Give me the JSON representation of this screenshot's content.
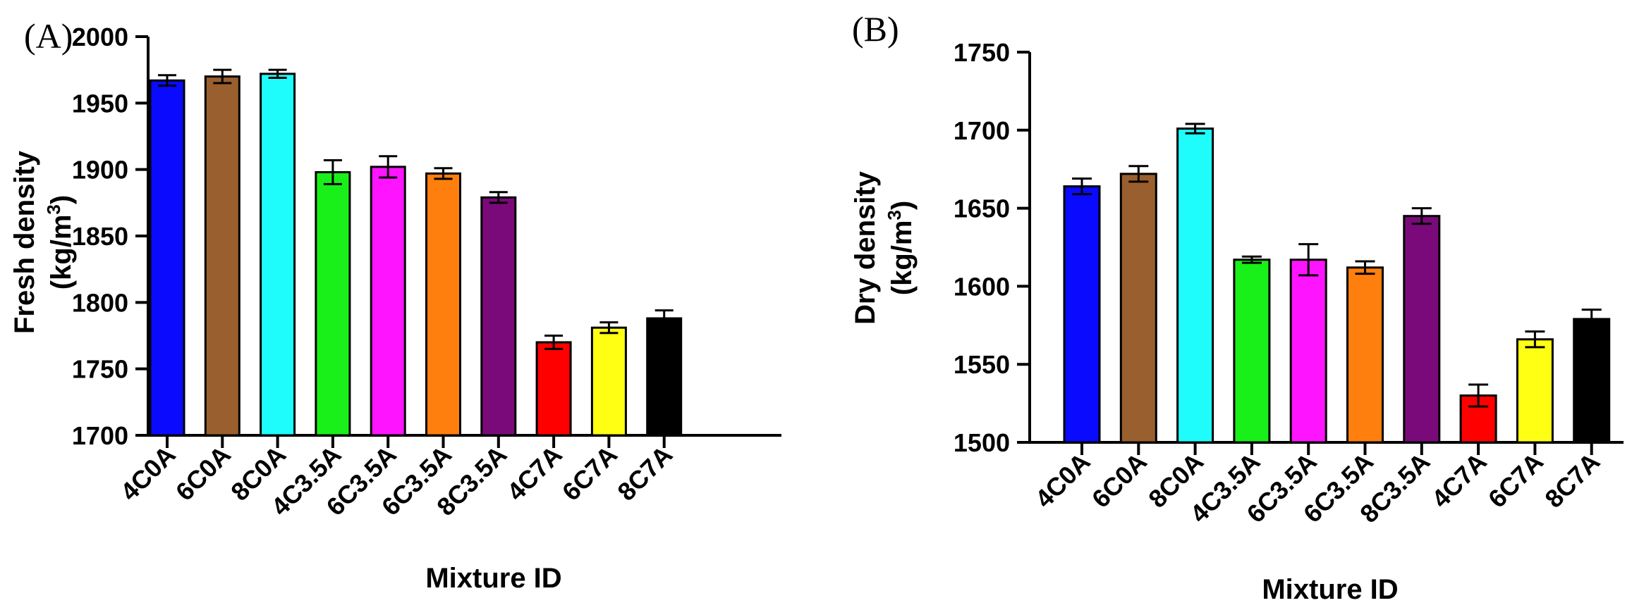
{
  "chart_data": [
    {
      "type": "bar",
      "panel_label": "(A)",
      "title": "",
      "xlabel": "Mixture ID",
      "ylabel_line1": "Fresh density",
      "ylabel_line2_base": "(kg/m",
      "ylabel_line2_sup": "3",
      "ylabel_line2_end": ")",
      "ylim": [
        1700,
        2000
      ],
      "yticks": [
        1700,
        1750,
        1800,
        1850,
        1900,
        1950,
        2000
      ],
      "grid": false,
      "categories": [
        "4C0A",
        "6C0A",
        "8C0A",
        "4C3.5A",
        "6C3.5A",
        "6C3.5A",
        "8C3.5A",
        "4C7A",
        "6C7A",
        "8C7A"
      ],
      "values": [
        1967,
        1970,
        1972,
        1898,
        1902,
        1897,
        1879,
        1770,
        1781,
        1788
      ],
      "errors": [
        4,
        5,
        3,
        9,
        8,
        4,
        4,
        5,
        4,
        6
      ],
      "colors": [
        "#0a0aff",
        "#9a5f2e",
        "#1ffcfc",
        "#19f019",
        "#ff14ff",
        "#ff7f0e",
        "#7a0a7a",
        "#ff0000",
        "#ffff14",
        "#000000"
      ]
    },
    {
      "type": "bar",
      "panel_label": "(B)",
      "title": "",
      "xlabel": "Mixture ID",
      "ylabel_line1": "Dry density",
      "ylabel_line2_base": "(kg/m",
      "ylabel_line2_sup": "3",
      "ylabel_line2_end": ")",
      "ylim": [
        1500,
        1750
      ],
      "yticks": [
        1500,
        1550,
        1600,
        1650,
        1700,
        1750
      ],
      "grid": false,
      "categories": [
        "4C0A",
        "6C0A",
        "8C0A",
        "4C3.5A",
        "6C3.5A",
        "6C3.5A",
        "8C3.5A",
        "4C7A",
        "6C7A",
        "8C7A"
      ],
      "values": [
        1664,
        1672,
        1701,
        1617,
        1617,
        1612,
        1645,
        1530,
        1566,
        1579
      ],
      "errors": [
        5,
        5,
        3,
        2,
        10,
        4,
        5,
        7,
        5,
        6
      ],
      "colors": [
        "#0a0aff",
        "#9a5f2e",
        "#1ffcfc",
        "#19f019",
        "#ff14ff",
        "#ff7f0e",
        "#7a0a7a",
        "#ff0000",
        "#ffff14",
        "#000000"
      ]
    }
  ]
}
